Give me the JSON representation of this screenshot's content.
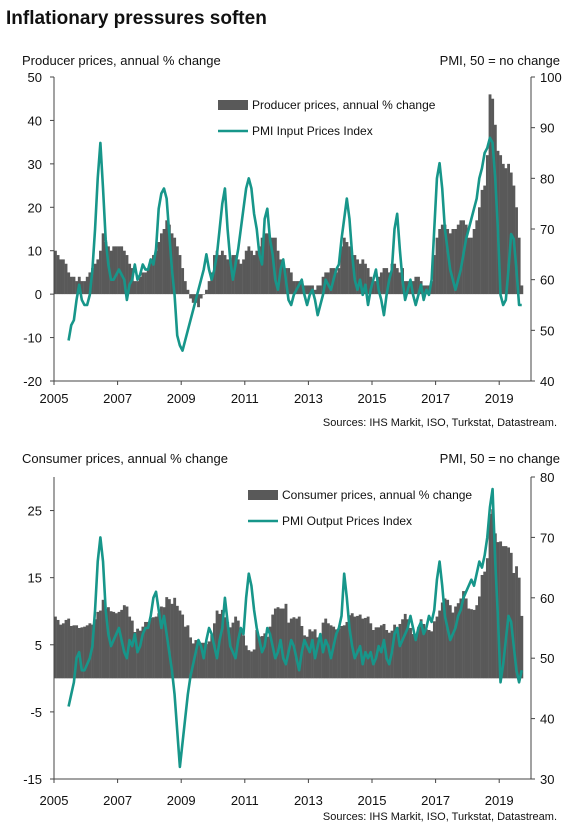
{
  "title": "Inflationary pressures soften",
  "chart_data": [
    {
      "type": "combo",
      "y_label": "Producer prices, annual % change",
      "y2_label": "PMI, 50 = no change",
      "source": "Sources: IHS Markit, ISO, Turkstat, Datastream.",
      "categories": [
        "2005",
        null,
        null,
        null,
        null,
        null,
        null,
        null,
        null,
        null,
        null,
        null,
        null,
        null,
        null,
        null,
        null,
        null,
        null,
        null,
        null,
        null,
        null,
        null,
        "2007",
        null,
        null,
        null,
        null,
        null,
        null,
        null,
        null,
        null,
        null,
        null,
        null,
        null,
        null,
        null,
        null,
        null,
        null,
        null,
        null,
        null,
        null,
        null,
        "2009",
        null,
        null,
        null,
        null,
        null,
        null,
        null,
        null,
        null,
        null,
        null,
        null,
        null,
        null,
        null,
        null,
        null,
        null,
        null,
        null,
        null,
        null,
        null,
        "2011",
        null,
        null,
        null,
        null,
        null,
        null,
        null,
        null,
        null,
        null,
        null,
        null,
        null,
        null,
        null,
        null,
        null,
        null,
        null,
        null,
        null,
        null,
        null,
        "2013",
        null,
        null,
        null,
        null,
        null,
        null,
        null,
        null,
        null,
        null,
        null,
        null,
        null,
        null,
        null,
        null,
        null,
        null,
        null,
        null,
        null,
        null,
        null,
        "2015",
        null,
        null,
        null,
        null,
        null,
        null,
        null,
        null,
        null,
        null,
        null,
        null,
        null,
        null,
        null,
        null,
        null,
        null,
        null,
        null,
        null,
        null,
        null,
        "2017",
        null,
        null,
        null,
        null,
        null,
        null,
        null,
        null,
        null,
        null,
        null,
        null,
        null,
        null,
        null,
        null,
        null,
        null,
        null,
        null,
        null,
        null,
        null,
        "2019",
        null,
        null,
        null,
        null,
        null,
        null,
        null,
        null
      ],
      "ylim": [
        -20,
        50
      ],
      "yticks": [
        -20,
        -10,
        0,
        10,
        20,
        30,
        40,
        50
      ],
      "y2lim": [
        40,
        100
      ],
      "y2ticks": [
        40,
        50,
        60,
        70,
        80,
        90,
        100
      ],
      "series": [
        {
          "name": "Producer prices, annual % change",
          "type": "bar",
          "color": "#595959",
          "values": [
            10,
            9,
            8,
            8,
            7,
            5,
            4,
            4,
            3,
            4,
            3,
            3,
            4,
            5,
            6,
            7,
            8,
            10,
            14,
            12,
            11,
            10,
            11,
            11,
            11,
            11,
            10,
            9,
            7,
            6,
            3,
            3,
            4,
            5,
            5,
            6,
            8,
            9,
            10,
            12,
            14,
            15,
            17,
            16,
            14,
            13,
            11,
            9,
            6,
            3,
            1,
            -1,
            -2,
            -2,
            -3,
            -1,
            0,
            1,
            3,
            5,
            9,
            10,
            9,
            10,
            9,
            8,
            8,
            9,
            9,
            8,
            7,
            8,
            10,
            11,
            10,
            9,
            10,
            11,
            13,
            14,
            14,
            13,
            13,
            13,
            10,
            8,
            7,
            6,
            6,
            5,
            3,
            3,
            3,
            3,
            2,
            2,
            2,
            2,
            1,
            2,
            2,
            4,
            5,
            5,
            6,
            6,
            5,
            6,
            11,
            13,
            12,
            11,
            9,
            9,
            8,
            7,
            8,
            7,
            6,
            4,
            3,
            3,
            4,
            5,
            6,
            6,
            5,
            7,
            7,
            6,
            5,
            6,
            3,
            3,
            3,
            3,
            4,
            4,
            3,
            2,
            2,
            2,
            3,
            9,
            13,
            15,
            16,
            16,
            15,
            14,
            15,
            15,
            16,
            17,
            17,
            16,
            13,
            13,
            15,
            17,
            20,
            24,
            25,
            32,
            46,
            45,
            39,
            33,
            32,
            30,
            29,
            30,
            28,
            25,
            20,
            13,
            2
          ]
        },
        {
          "name": "PMI Input Prices Index",
          "type": "line",
          "axis": "y2",
          "color": "#17968a",
          "values": [
            null,
            null,
            null,
            null,
            null,
            48,
            51,
            52,
            56,
            59,
            56,
            55,
            55,
            57,
            62,
            70,
            80,
            87,
            78,
            68,
            63,
            60,
            60,
            61,
            62,
            61,
            60,
            56,
            59,
            60,
            63,
            60,
            61,
            63,
            62,
            62,
            64,
            63,
            66,
            74,
            77,
            78,
            76,
            69,
            62,
            57,
            49,
            47,
            46,
            48,
            50,
            52,
            54,
            56,
            58,
            60,
            62,
            65,
            62,
            60,
            62,
            65,
            70,
            75,
            78,
            70,
            64,
            60,
            63,
            66,
            70,
            74,
            78,
            80,
            78,
            73,
            70,
            65,
            63,
            72,
            74,
            68,
            65,
            60,
            58,
            62,
            64,
            60,
            56,
            55,
            57,
            58,
            59,
            60,
            57,
            55,
            57,
            58,
            56,
            53,
            55,
            57,
            60,
            59,
            58,
            60,
            62,
            63,
            68,
            72,
            76,
            72,
            65,
            60,
            58,
            60,
            57,
            59,
            55,
            58,
            60,
            62,
            58,
            56,
            53,
            57,
            60,
            62,
            70,
            73,
            66,
            60,
            56,
            58,
            60,
            57,
            55,
            57,
            59,
            56,
            58,
            57,
            60,
            70,
            80,
            83,
            78,
            70,
            66,
            62,
            60,
            58,
            60,
            62,
            65,
            68,
            70,
            72,
            74,
            76,
            80,
            82,
            85,
            86,
            88,
            87,
            80,
            70,
            57,
            55,
            56,
            62,
            69,
            68,
            62,
            55,
            55
          ]
        }
      ]
    },
    {
      "type": "combo",
      "y_label": "Consumer prices, annual % change",
      "y2_label": "PMI, 50 = no change",
      "source": "Sources: IHS Markit, ISO, Turkstat, Datastream.",
      "categories": [
        "2005",
        null,
        null,
        null,
        null,
        null,
        null,
        null,
        null,
        null,
        null,
        null,
        null,
        null,
        null,
        null,
        null,
        null,
        null,
        null,
        null,
        null,
        null,
        null,
        "2007",
        null,
        null,
        null,
        null,
        null,
        null,
        null,
        null,
        null,
        null,
        null,
        null,
        null,
        null,
        null,
        null,
        null,
        null,
        null,
        null,
        null,
        null,
        null,
        "2009",
        null,
        null,
        null,
        null,
        null,
        null,
        null,
        null,
        null,
        null,
        null,
        null,
        null,
        null,
        null,
        null,
        null,
        null,
        null,
        null,
        null,
        null,
        null,
        "2011",
        null,
        null,
        null,
        null,
        null,
        null,
        null,
        null,
        null,
        null,
        null,
        null,
        null,
        null,
        null,
        null,
        null,
        null,
        null,
        null,
        null,
        null,
        null,
        "2013",
        null,
        null,
        null,
        null,
        null,
        null,
        null,
        null,
        null,
        null,
        null,
        null,
        null,
        null,
        null,
        null,
        null,
        null,
        null,
        null,
        null,
        null,
        null,
        "2015",
        null,
        null,
        null,
        null,
        null,
        null,
        null,
        null,
        null,
        null,
        null,
        null,
        null,
        null,
        null,
        null,
        null,
        null,
        null,
        null,
        null,
        null,
        null,
        "2017",
        null,
        null,
        null,
        null,
        null,
        null,
        null,
        null,
        null,
        null,
        null,
        null,
        null,
        null,
        null,
        null,
        null,
        null,
        null,
        null,
        null,
        null,
        null,
        "2019",
        null,
        null,
        null,
        null,
        null,
        null,
        null,
        null
      ],
      "ylim": [
        -15,
        30
      ],
      "yticks": [
        -15,
        -5,
        5,
        15,
        25
      ],
      "y2lim": [
        30,
        80
      ],
      "y2ticks": [
        30,
        40,
        50,
        60,
        70,
        80
      ],
      "series": [
        {
          "name": "Consumer prices, annual % change",
          "type": "bar",
          "color": "#595959",
          "values": [
            9.2,
            8.7,
            8,
            8.2,
            8.7,
            8.9,
            7.8,
            7.9,
            7.9,
            7.5,
            7.6,
            7.7,
            7.9,
            8.2,
            8,
            8.8,
            9.9,
            10.1,
            11.7,
            10.3,
            10.6,
            10,
            9.9,
            9.7,
            9.9,
            10.2,
            10.9,
            10.7,
            9.2,
            8.6,
            6.9,
            7.4,
            7.1,
            7.7,
            8.4,
            8.4,
            9,
            9.1,
            9.2,
            9.7,
            10.7,
            10.6,
            12.1,
            11.8,
            11.1,
            12,
            10.8,
            10.1,
            9.5,
            7.7,
            7.9,
            6.1,
            5.2,
            5.7,
            5.4,
            5.3,
            5.3,
            5.1,
            5.5,
            6.5,
            8.2,
            10.1,
            9.6,
            10.2,
            9.1,
            8.4,
            7.6,
            8.3,
            9.2,
            8.6,
            7.3,
            6.4,
            4.9,
            4.2,
            4,
            4.3,
            7.2,
            6.2,
            6.3,
            6.7,
            6.2,
            7.7,
            9.5,
            10.4,
            10.6,
            10.4,
            10.4,
            11.1,
            8.3,
            8.9,
            9.1,
            8.9,
            9.2,
            7.8,
            6.4,
            6.2,
            7.3,
            7,
            7.3,
            6.1,
            6.5,
            8.3,
            8.9,
            8.2,
            7.9,
            7.7,
            7.3,
            7.4,
            7.8,
            7.9,
            8.4,
            9.4,
            9.7,
            9.2,
            9.3,
            9.5,
            8.9,
            9,
            9.2,
            8.2,
            7.2,
            7.6,
            7.6,
            7.9,
            8.1,
            7.2,
            6.8,
            7.1,
            8,
            7.6,
            8.1,
            8.8,
            9.6,
            8.8,
            7.5,
            6.6,
            6.6,
            7.6,
            8.8,
            8.1,
            7.3,
            7.2,
            7,
            8.5,
            9.2,
            10.1,
            11.3,
            11.9,
            11.7,
            10.9,
            9.8,
            10.7,
            11.2,
            11.9,
            13,
            11.9,
            10.4,
            10.3,
            10.2,
            10.9,
            12.2,
            15.4,
            15.9,
            17.9,
            24.5,
            25.2,
            21.6,
            20.3,
            20.4,
            19.7,
            19.7,
            19.5,
            18.7,
            15.7,
            16.7,
            15,
            9.3
          ]
        },
        {
          "name": "PMI Output Prices Index",
          "type": "line",
          "axis": "y2",
          "color": "#17968a",
          "values": [
            null,
            null,
            null,
            null,
            null,
            42,
            44,
            46,
            50,
            51,
            48,
            48,
            49,
            50,
            52,
            58,
            66,
            70,
            66,
            58,
            54,
            52,
            53,
            54,
            55,
            53,
            51,
            50,
            53,
            52,
            54,
            51,
            52,
            54,
            55,
            55,
            57,
            60,
            61,
            58,
            55,
            57,
            54,
            51,
            48,
            44,
            38,
            32,
            36,
            40,
            44,
            47,
            49,
            51,
            53,
            52,
            50,
            53,
            55,
            54,
            52,
            50,
            53,
            55,
            60,
            56,
            52,
            51,
            50,
            53,
            55,
            54,
            60,
            64,
            62,
            58,
            55,
            53,
            51,
            52,
            55,
            54,
            52,
            50,
            51,
            53,
            50,
            49,
            51,
            53,
            52,
            50,
            48,
            51,
            53,
            52,
            51,
            53,
            50,
            52,
            54,
            51,
            53,
            52,
            50,
            52,
            54,
            55,
            57,
            64,
            60,
            55,
            52,
            50,
            51,
            52,
            49,
            51,
            50,
            51,
            49,
            50,
            52,
            51,
            53,
            50,
            49,
            51,
            54,
            55,
            52,
            53,
            54,
            55,
            57,
            55,
            53,
            55,
            56,
            54,
            55,
            57,
            56,
            58,
            63,
            66,
            62,
            57,
            55,
            53,
            54,
            55,
            57,
            58,
            60,
            61,
            62,
            63,
            62,
            64,
            66,
            65,
            67,
            70,
            75,
            78,
            66,
            57,
            46,
            49,
            53,
            57,
            56,
            52,
            48,
            46,
            48
          ]
        }
      ]
    }
  ]
}
